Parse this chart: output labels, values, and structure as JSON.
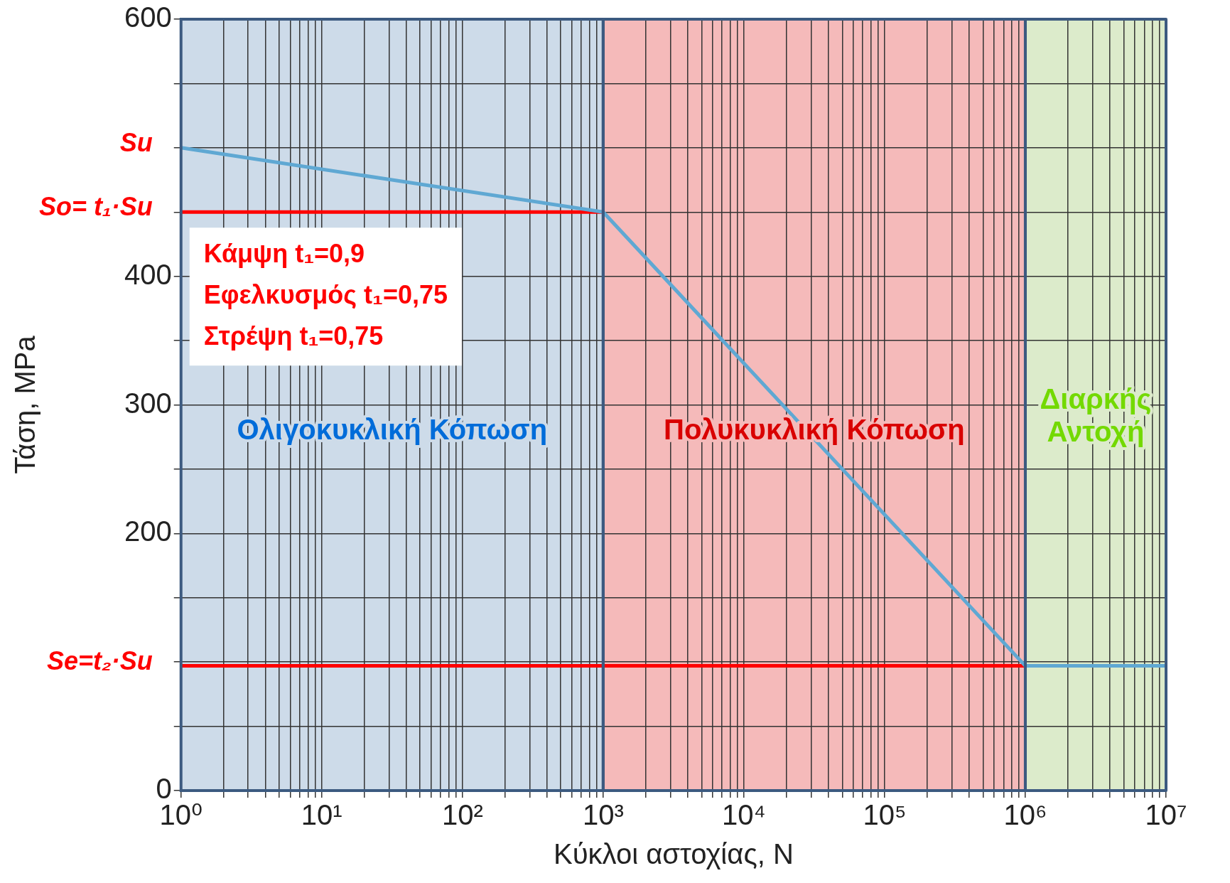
{
  "chart_data": {
    "type": "line",
    "xlabel": "Κύκλοι αστοχίας, N",
    "ylabel": "Τάση, MPa",
    "log": "x",
    "grid": true,
    "legend": false,
    "marker": "none",
    "line_style": "solid",
    "xlim": [
      1,
      10000000
    ],
    "ylim": [
      0,
      600
    ],
    "xticks": [
      {
        "value": 1,
        "label": "10⁰"
      },
      {
        "value": 2,
        "label": null
      },
      {
        "value": 3,
        "label": null
      },
      {
        "value": 4,
        "label": null
      },
      {
        "value": 5,
        "label": null
      },
      {
        "value": 6,
        "label": null
      },
      {
        "value": 7,
        "label": null
      },
      {
        "value": 8,
        "label": null
      },
      {
        "value": 9,
        "label": null
      },
      {
        "value": 10,
        "label": "10¹"
      },
      {
        "value": 20,
        "label": null
      },
      {
        "value": 30,
        "label": null
      },
      {
        "value": 40,
        "label": null
      },
      {
        "value": 50,
        "label": null
      },
      {
        "value": 60,
        "label": null
      },
      {
        "value": 70,
        "label": null
      },
      {
        "value": 80,
        "label": null
      },
      {
        "value": 90,
        "label": null
      },
      {
        "value": 100,
        "label": "10²"
      },
      {
        "value": 200,
        "label": null
      },
      {
        "value": 300,
        "label": null
      },
      {
        "value": 400,
        "label": null
      },
      {
        "value": 500,
        "label": null
      },
      {
        "value": 600,
        "label": null
      },
      {
        "value": 700,
        "label": null
      },
      {
        "value": 800,
        "label": null
      },
      {
        "value": 900,
        "label": null
      },
      {
        "value": 1000,
        "label": "10³"
      },
      {
        "value": 2000,
        "label": null
      },
      {
        "value": 3000,
        "label": null
      },
      {
        "value": 4000,
        "label": null
      },
      {
        "value": 5000,
        "label": null
      },
      {
        "value": 6000,
        "label": null
      },
      {
        "value": 7000,
        "label": null
      },
      {
        "value": 8000,
        "label": null
      },
      {
        "value": 9000,
        "label": null
      },
      {
        "value": 10000,
        "label": "10⁴"
      },
      {
        "value": 20000,
        "label": null
      },
      {
        "value": 30000,
        "label": null
      },
      {
        "value": 40000,
        "label": null
      },
      {
        "value": 50000,
        "label": null
      },
      {
        "value": 60000,
        "label": null
      },
      {
        "value": 70000,
        "label": null
      },
      {
        "value": 80000,
        "label": null
      },
      {
        "value": 90000,
        "label": null
      },
      {
        "value": 100000,
        "label": "10⁵"
      },
      {
        "value": 200000,
        "label": null
      },
      {
        "value": 300000,
        "label": null
      },
      {
        "value": 400000,
        "label": null
      },
      {
        "value": 500000,
        "label": null
      },
      {
        "value": 600000,
        "label": null
      },
      {
        "value": 700000,
        "label": null
      },
      {
        "value": 800000,
        "label": null
      },
      {
        "value": 900000,
        "label": null
      },
      {
        "value": 1000000,
        "label": "10⁶"
      },
      {
        "value": 2000000,
        "label": null
      },
      {
        "value": 3000000,
        "label": null
      },
      {
        "value": 4000000,
        "label": null
      },
      {
        "value": 5000000,
        "label": null
      },
      {
        "value": 6000000,
        "label": null
      },
      {
        "value": 7000000,
        "label": null
      },
      {
        "value": 8000000,
        "label": null
      },
      {
        "value": 9000000,
        "label": null
      },
      {
        "value": 10000000,
        "label": "10⁷"
      }
    ],
    "yticks": [
      0,
      {
        "value": 50,
        "label": null
      },
      {
        "value": 100,
        "label": null
      },
      {
        "value": 150,
        "label": null
      },
      200,
      {
        "value": 250,
        "label": null
      },
      300,
      {
        "value": 350,
        "label": null
      },
      400,
      {
        "value": 450,
        "label": null
      },
      {
        "value": 500,
        "label": null
      },
      {
        "value": 550,
        "label": null
      },
      600
    ],
    "series": [
      {
        "color": "#5fa8d3",
        "x": [
          1,
          1000,
          1000000,
          10000000
        ],
        "values": [
          500,
          450,
          97,
          97
        ]
      },
      {
        "name": "So= t₁·Su",
        "color": "#ff0000",
        "x": [
          1,
          1000
        ],
        "values": [
          450,
          450
        ]
      },
      {
        "name": "Se=t₂·Su",
        "color": "#ff0000",
        "x": [
          1,
          1000000
        ],
        "values": [
          97,
          97
        ]
      }
    ],
    "bands": [
      {
        "axis": "x",
        "from": 1,
        "to": 1000,
        "label": "Ολιγοκυκλική Κόπωση",
        "color": "#cddbe9"
      },
      {
        "axis": "x",
        "from": 1000,
        "to": 1000000,
        "label": "Πολυκυκλική Κόπωση",
        "color": "#f5baba"
      },
      {
        "axis": "x",
        "from": 1000000,
        "to": 10000000,
        "label": "Διαρκής Αντοχή",
        "color": "#dcebcb"
      }
    ],
    "annotations": [
      {
        "text": "Su",
        "x": 1,
        "y": 500
      },
      "Κάμψη t₁=0,9",
      "Εφελκυσμός t₁=0,75",
      "Στρέψη t₁=0,75"
    ]
  }
}
